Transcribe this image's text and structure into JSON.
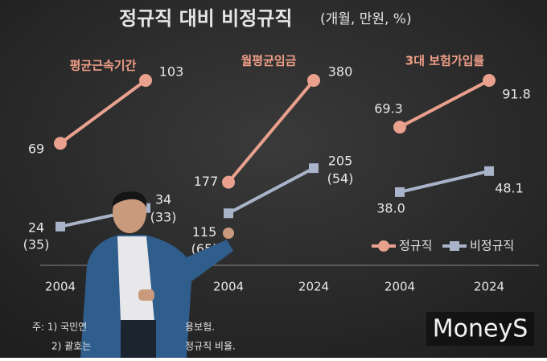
{
  "title": "정규직 대비 비정규직",
  "unit_note": "(개월, 만원, %)",
  "chart_data": [
    {
      "type": "line",
      "title": "평균근속기간",
      "categories": [
        "2004",
        null
      ],
      "series": [
        {
          "color": "#e9a18e",
          "values": [
            69,
            103
          ]
        },
        {
          "color": "#a9b3c9",
          "values": [
            24,
            34
          ],
          "notes": [
            "(35)",
            "(33)"
          ]
        }
      ]
    },
    {
      "type": "line",
      "title": "월평균임금",
      "categories": [
        "2004",
        "2024"
      ],
      "series": [
        {
          "color": "#e9a18e",
          "values": [
            177,
            380
          ]
        },
        {
          "color": "#a9b3c9",
          "values": [
            115,
            205
          ],
          "notes": [
            "(65)",
            "(54)"
          ]
        }
      ]
    },
    {
      "type": "line",
      "title": "3대 보험가입률",
      "categories": [
        "2004",
        "2024"
      ],
      "series": [
        {
          "name": "정규직",
          "color": "#e9a18e",
          "values": [
            69.3,
            91.8
          ]
        },
        {
          "name": "비정규직",
          "color": "#a9b3c9",
          "values": [
            38,
            48.1
          ],
          "value_labels": [
            "38.0",
            "48.1"
          ]
        }
      ]
    }
  ],
  "footnotes": [
    "주: 1) 국민연",
    "용보험.",
    "2) 괄호는",
    "정규직 비율."
  ],
  "watermark": "MoneyS"
}
